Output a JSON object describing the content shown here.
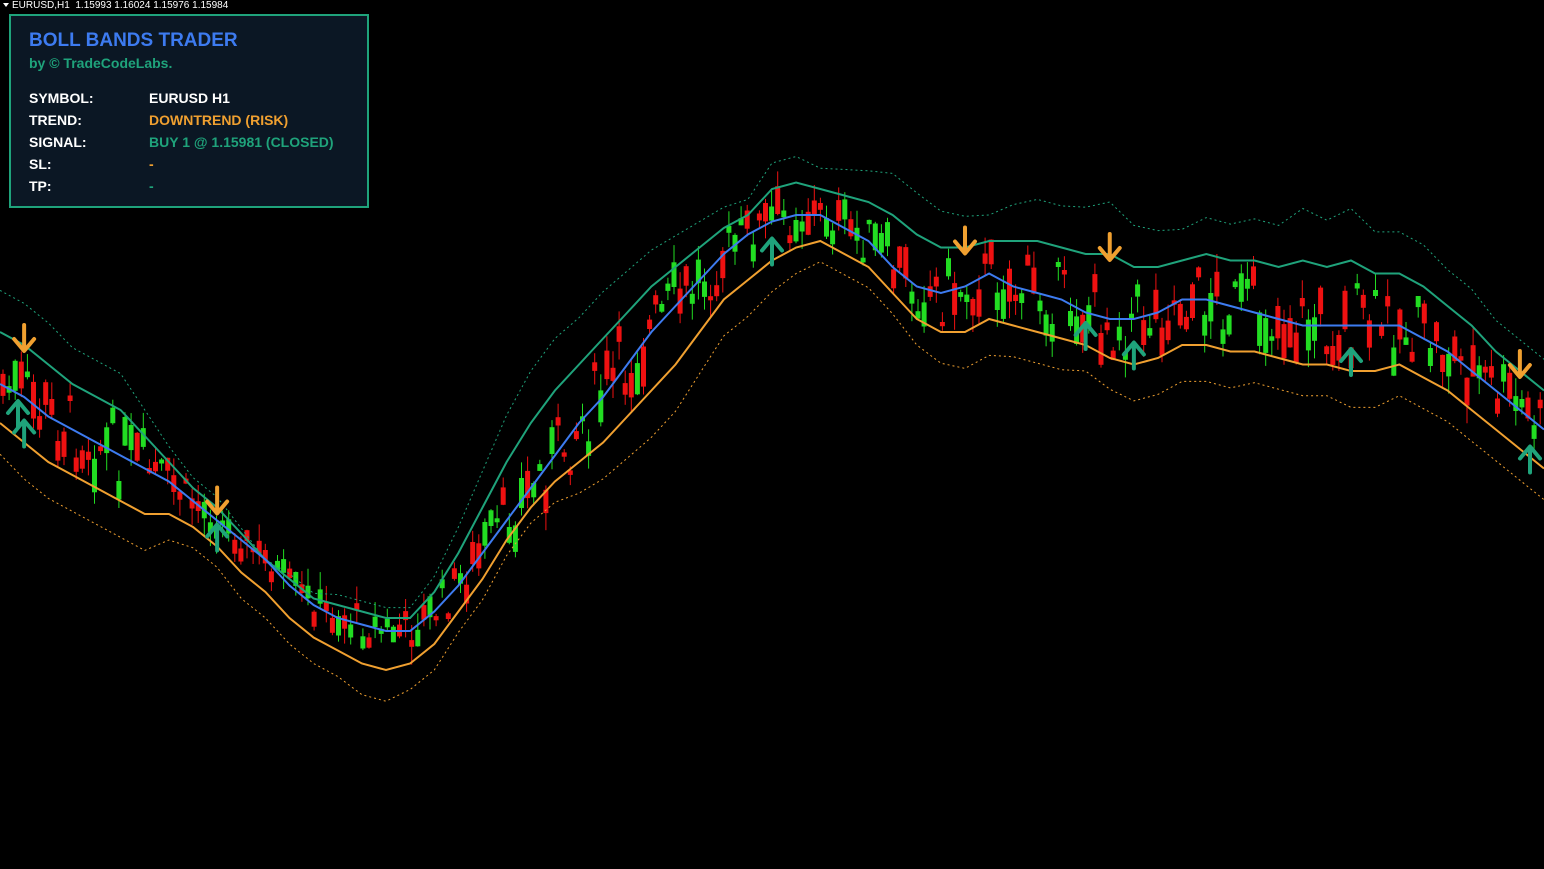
{
  "header": {
    "symbol_period": "EURUSD,H1",
    "ohlc": "1.15993 1.16024 1.15976 1.15984"
  },
  "panel": {
    "title": "BOLL BANDS TRADER",
    "byline": "by © TradeCodeLabs.",
    "rows": [
      {
        "label": "SYMBOL:",
        "value": "EURUSD H1",
        "color": "#ffffff"
      },
      {
        "label": "TREND:",
        "value": "DOWNTREND (RISK)",
        "color": "#f0a030"
      },
      {
        "label": "SIGNAL:",
        "value": "BUY 1 @ 1.15981 (CLOSED)",
        "color": "#1fa37b"
      },
      {
        "label": "SL:",
        "value": "-",
        "color": "#f0a030"
      },
      {
        "label": "TP:",
        "value": "-",
        "color": "#1fa37b"
      }
    ]
  },
  "colors": {
    "background": "#000000",
    "bull_candle": "#22dd22",
    "bear_candle": "#ee1111",
    "middle_band": "#3d7bf0",
    "upper_band": "#1fa37b",
    "lower_band": "#f0a030",
    "buy_arrow": "#1fa37b",
    "sell_arrow": "#f0a030",
    "panel_border": "#1fa37b",
    "panel_bg": "#0b1724"
  },
  "chart_data": {
    "type": "candlestick",
    "symbol": "EURUSD",
    "timeframe": "H1",
    "indicator": "Bollinger Bands",
    "series": [
      {
        "name": "middle band",
        "values": [
          0.36,
          0.38,
          0.41,
          0.43,
          0.45,
          0.47,
          0.49,
          0.51,
          0.54,
          0.57,
          0.6,
          0.63,
          0.67,
          0.7,
          0.72,
          0.73,
          0.74,
          0.74,
          0.71,
          0.67,
          0.62,
          0.57,
          0.52,
          0.47,
          0.42,
          0.38,
          0.33,
          0.28,
          0.24,
          0.2,
          0.16,
          0.13,
          0.11,
          0.1,
          0.1,
          0.12,
          0.14,
          0.18,
          0.21,
          0.22,
          0.21,
          0.19,
          0.21,
          0.22,
          0.23,
          0.25,
          0.26,
          0.26,
          0.25,
          0.23,
          0.23,
          0.24,
          0.25,
          0.26,
          0.27,
          0.27,
          0.27,
          0.27,
          0.27,
          0.29,
          0.31,
          0.34,
          0.37,
          0.4,
          0.43
        ]
      },
      {
        "name": "upper band",
        "values": [
          0.28,
          0.3,
          0.33,
          0.36,
          0.38,
          0.4,
          0.44,
          0.48,
          0.52,
          0.55,
          0.59,
          0.63,
          0.66,
          0.69,
          0.7,
          0.71,
          0.72,
          0.72,
          0.68,
          0.62,
          0.55,
          0.48,
          0.42,
          0.37,
          0.33,
          0.29,
          0.25,
          0.21,
          0.18,
          0.15,
          0.12,
          0.1,
          0.06,
          0.05,
          0.06,
          0.07,
          0.08,
          0.1,
          0.13,
          0.15,
          0.15,
          0.14,
          0.14,
          0.14,
          0.15,
          0.16,
          0.16,
          0.18,
          0.18,
          0.17,
          0.16,
          0.17,
          0.17,
          0.18,
          0.17,
          0.18,
          0.17,
          0.19,
          0.19,
          0.21,
          0.24,
          0.27,
          0.31,
          0.34,
          0.37
        ]
      },
      {
        "name": "lower band",
        "values": [
          0.42,
          0.45,
          0.48,
          0.5,
          0.52,
          0.54,
          0.56,
          0.56,
          0.58,
          0.61,
          0.65,
          0.68,
          0.72,
          0.75,
          0.77,
          0.79,
          0.8,
          0.79,
          0.76,
          0.71,
          0.66,
          0.6,
          0.55,
          0.51,
          0.48,
          0.45,
          0.41,
          0.37,
          0.33,
          0.28,
          0.23,
          0.2,
          0.17,
          0.15,
          0.14,
          0.16,
          0.18,
          0.22,
          0.26,
          0.28,
          0.28,
          0.26,
          0.27,
          0.28,
          0.29,
          0.3,
          0.32,
          0.33,
          0.32,
          0.3,
          0.3,
          0.31,
          0.31,
          0.32,
          0.33,
          0.33,
          0.34,
          0.34,
          0.33,
          0.35,
          0.37,
          0.4,
          0.43,
          0.46,
          0.49
        ]
      }
    ],
    "signals": [
      {
        "type": "sell",
        "bar": 1
      },
      {
        "type": "buy",
        "bar": 0
      },
      {
        "type": "buy",
        "bar": 1
      },
      {
        "type": "sell",
        "bar": 9
      },
      {
        "type": "buy",
        "bar": 9
      },
      {
        "type": "buy",
        "bar": 32
      },
      {
        "type": "sell",
        "bar": 40
      },
      {
        "type": "sell",
        "bar": 46
      },
      {
        "type": "buy",
        "bar": 45
      },
      {
        "type": "buy",
        "bar": 47
      },
      {
        "type": "buy",
        "bar": 56
      },
      {
        "type": "sell",
        "bar": 63
      },
      {
        "type": "buy",
        "bar": 64
      }
    ]
  }
}
